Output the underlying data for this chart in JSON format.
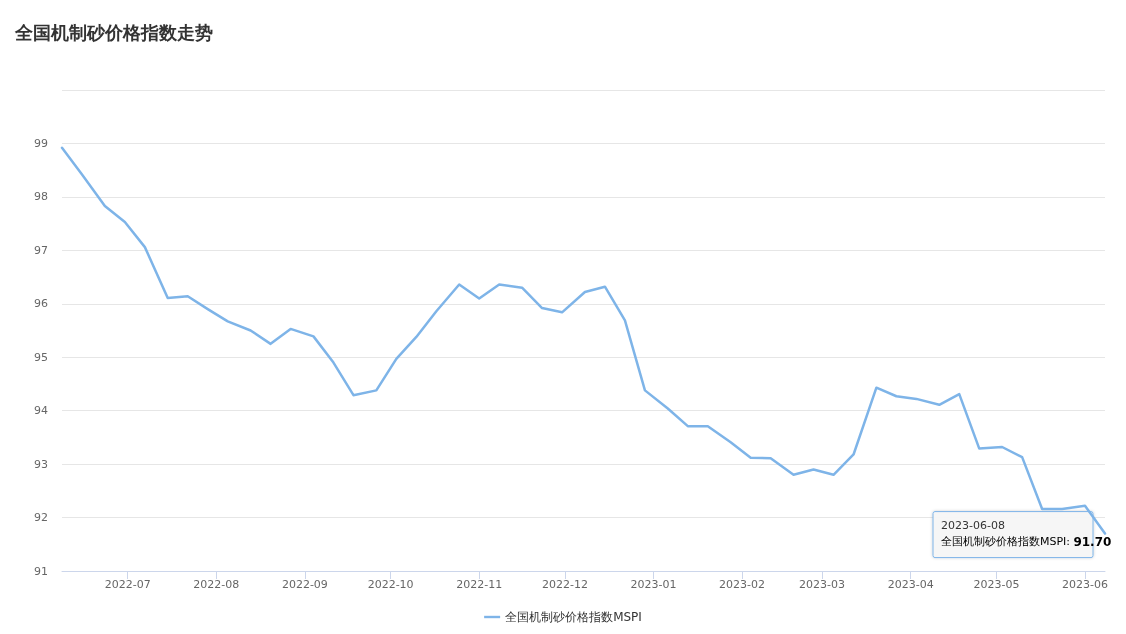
{
  "chart_data": {
    "type": "line",
    "title": "全国机制砂价格指数走势",
    "x": [
      "2022-06-08",
      "2022-06-15",
      "2022-06-23",
      "2022-06-30",
      "2022-07-07",
      "2022-07-15",
      "2022-07-22",
      "2022-07-29",
      "2022-08-05",
      "2022-08-13",
      "2022-08-20",
      "2022-08-27",
      "2022-09-04",
      "2022-09-11",
      "2022-09-18",
      "2022-09-26",
      "2022-10-03",
      "2022-10-10",
      "2022-10-17",
      "2022-10-25",
      "2022-11-01",
      "2022-11-08",
      "2022-11-16",
      "2022-11-23",
      "2022-11-30",
      "2022-12-08",
      "2022-12-15",
      "2022-12-22",
      "2022-12-29",
      "2023-01-06",
      "2023-01-13",
      "2023-01-20",
      "2023-01-28",
      "2023-02-04",
      "2023-02-11",
      "2023-02-19",
      "2023-02-26",
      "2023-03-05",
      "2023-03-12",
      "2023-03-20",
      "2023-03-27",
      "2023-04-03",
      "2023-04-11",
      "2023-04-18",
      "2023-04-25",
      "2023-05-03",
      "2023-05-10",
      "2023-05-17",
      "2023-05-24",
      "2023-06-01",
      "2023-06-08"
    ],
    "series": [
      {
        "name": "全国机制砂价格指数MSPI",
        "color": "#7eb4e8",
        "values": [
          98.92,
          98.42,
          97.83,
          97.53,
          97.06,
          96.11,
          96.14,
          95.9,
          95.67,
          95.5,
          95.25,
          95.53,
          95.39,
          94.9,
          94.29,
          94.38,
          94.97,
          95.38,
          95.86,
          96.36,
          96.1,
          96.36,
          96.3,
          95.92,
          95.84,
          96.22,
          96.32,
          95.69,
          94.38,
          94.04,
          93.71,
          93.71,
          93.41,
          93.12,
          93.11,
          92.8,
          92.9,
          92.8,
          93.18,
          94.43,
          94.27,
          94.22,
          94.11,
          94.31,
          93.29,
          93.32,
          93.13,
          92.16,
          92.16,
          92.22,
          91.7
        ]
      }
    ],
    "xlim": [
      "2022-06-08",
      "2023-06-08"
    ],
    "xticks": [
      {
        "value": "2022-07-01",
        "label": "2022-07"
      },
      {
        "value": "2022-08-01",
        "label": "2022-08"
      },
      {
        "value": "2022-09-01",
        "label": "2022-09"
      },
      {
        "value": "2022-10-01",
        "label": "2022-10"
      },
      {
        "value": "2022-11-01",
        "label": "2022-11"
      },
      {
        "value": "2022-12-01",
        "label": "2022-12"
      },
      {
        "value": "2023-01-01",
        "label": "2023-01"
      },
      {
        "value": "2023-02-01",
        "label": "2023-02"
      },
      {
        "value": "2023-03-01",
        "label": "2023-03"
      },
      {
        "value": "2023-04-01",
        "label": "2023-04"
      },
      {
        "value": "2023-05-01",
        "label": "2023-05"
      },
      {
        "value": "2023-06-01",
        "label": "2023-06"
      }
    ],
    "ylim": [
      91,
      100
    ],
    "yticks": [
      91,
      92,
      93,
      94,
      95,
      96,
      97,
      98,
      99,
      {
        "value": 100,
        "label": null
      }
    ],
    "grid": "y",
    "legend": "bottom",
    "marker": "none",
    "line_style": "solid",
    "annotations": [
      {
        "text": "2023-06-08\n全国机制砂价格指数MSPI: 91.70",
        "x": "2023-06-08",
        "y": 91.7
      }
    ]
  }
}
